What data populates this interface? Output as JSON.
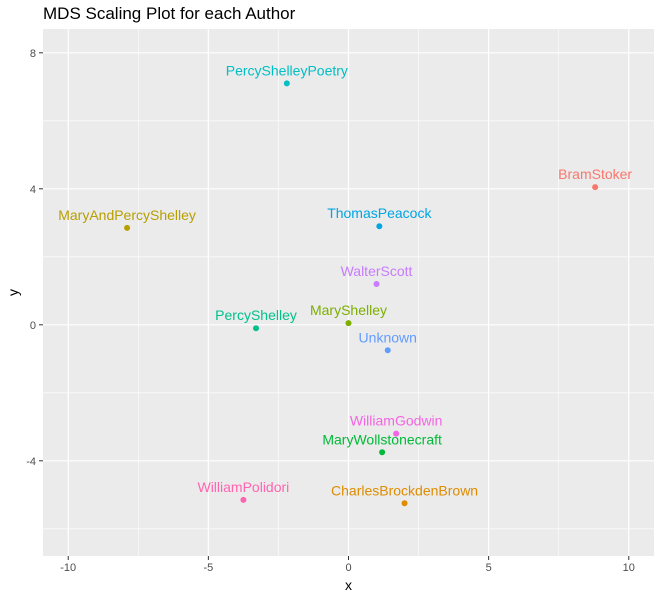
{
  "title": "MDS Scaling Plot for each Author",
  "chart_data": {
    "type": "scatter",
    "title": "MDS Scaling Plot for each Author",
    "xlabel": "x",
    "ylabel": "y",
    "xlim": [
      -10.9,
      10.9
    ],
    "ylim": [
      -6.8,
      8.7
    ],
    "x_ticks": [
      -10,
      -5,
      0,
      5,
      10
    ],
    "y_ticks": [
      -4,
      0,
      4,
      8
    ],
    "x_tick_labels": [
      "-10",
      "-5",
      "0",
      "5",
      "10"
    ],
    "y_tick_labels": [
      "-4",
      "0",
      "4",
      "8"
    ],
    "grid": true,
    "legend": "none",
    "points": [
      {
        "label": "PercyShelleyPoetry",
        "x": -2.2,
        "y": 7.1,
        "color": "#00BFC4"
      },
      {
        "label": "BramStoker",
        "x": 8.8,
        "y": 4.05,
        "color": "#F8766D"
      },
      {
        "label": "MaryAndPercyShelley",
        "x": -7.9,
        "y": 2.85,
        "color": "#B79F00"
      },
      {
        "label": "ThomasPeacock",
        "x": 1.1,
        "y": 2.9,
        "color": "#00A5E3"
      },
      {
        "label": "WalterScott",
        "x": 1.0,
        "y": 1.2,
        "color": "#C77CFF"
      },
      {
        "label": "PercyShelley",
        "x": -3.3,
        "y": -0.1,
        "color": "#00C08B"
      },
      {
        "label": "MaryShelley",
        "x": 0.0,
        "y": 0.05,
        "color": "#7CAE00"
      },
      {
        "label": "Unknown",
        "x": 1.4,
        "y": -0.75,
        "color": "#619CFF"
      },
      {
        "label": "WilliamGodwin",
        "x": 1.7,
        "y": -3.2,
        "color": "#F564E3"
      },
      {
        "label": "MaryWollstonecraft",
        "x": 1.2,
        "y": -3.75,
        "color": "#00BA38"
      },
      {
        "label": "WilliamPolidori",
        "x": -3.75,
        "y": -5.15,
        "color": "#FF64B0"
      },
      {
        "label": "CharlesBrockdenBrown",
        "x": 2.0,
        "y": -5.25,
        "color": "#DE8C00"
      }
    ]
  }
}
